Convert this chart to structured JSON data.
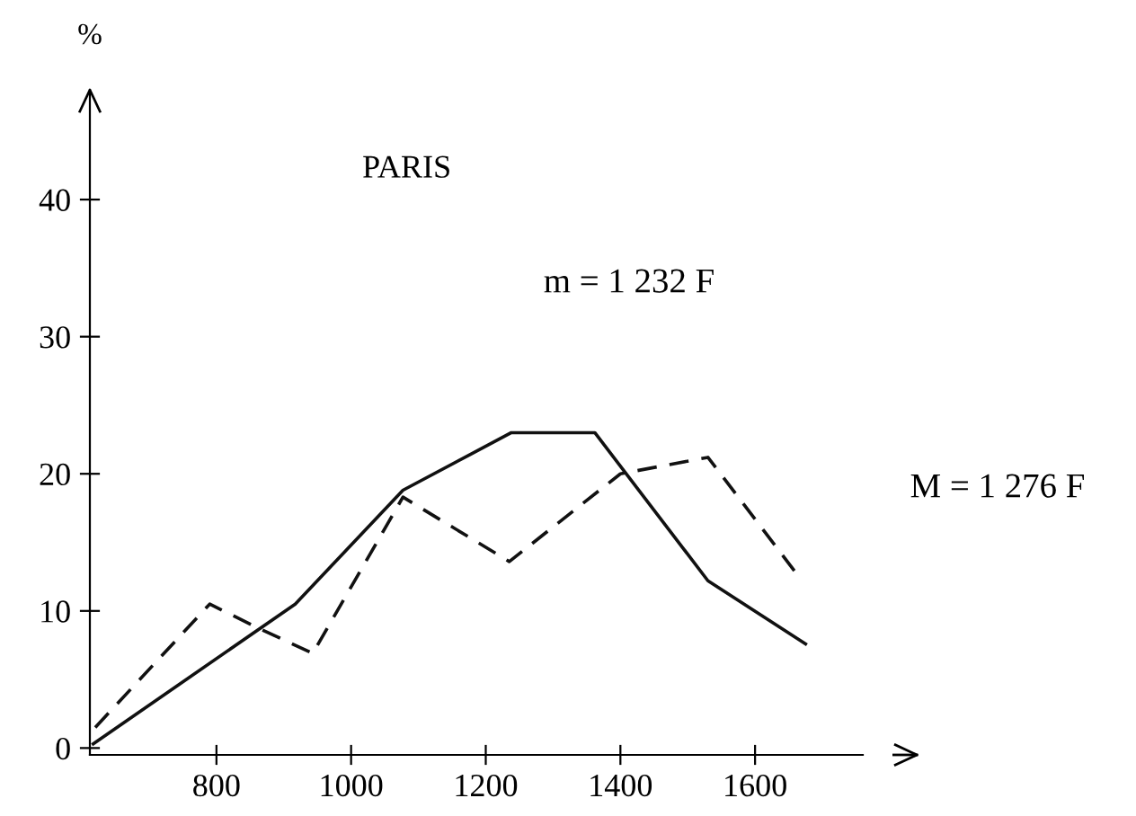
{
  "chart_data": {
    "type": "line",
    "title": "PARIS",
    "ylabel": "%",
    "annotations": [
      "m = 1 232 F",
      "M = 1 276 F"
    ],
    "series": [
      {
        "color": "#111111",
        "line_style": "solid",
        "x": [
          617,
          917,
          1077,
          1238,
          1362,
          1530,
          1675
        ],
        "values": [
          0.3,
          10.5,
          18.8,
          23,
          23,
          12.2,
          7.6
        ]
      },
      {
        "color": "#111111",
        "line_style": "dashed",
        "x": [
          620,
          790,
          860,
          943,
          1077,
          1235,
          1400,
          1530,
          1665
        ],
        "values": [
          1.5,
          10.5,
          8.8,
          6.9,
          18.3,
          13.6,
          20,
          21.2,
          12.5
        ]
      }
    ],
    "xlim": [
      612,
      1760
    ],
    "ylim": [
      -0.5,
      48
    ],
    "xticks": [
      800,
      1000,
      1200,
      1400,
      1600
    ],
    "yticks": [
      0,
      10,
      20,
      30,
      40
    ],
    "grid": false,
    "legend": false,
    "marker": "none"
  }
}
